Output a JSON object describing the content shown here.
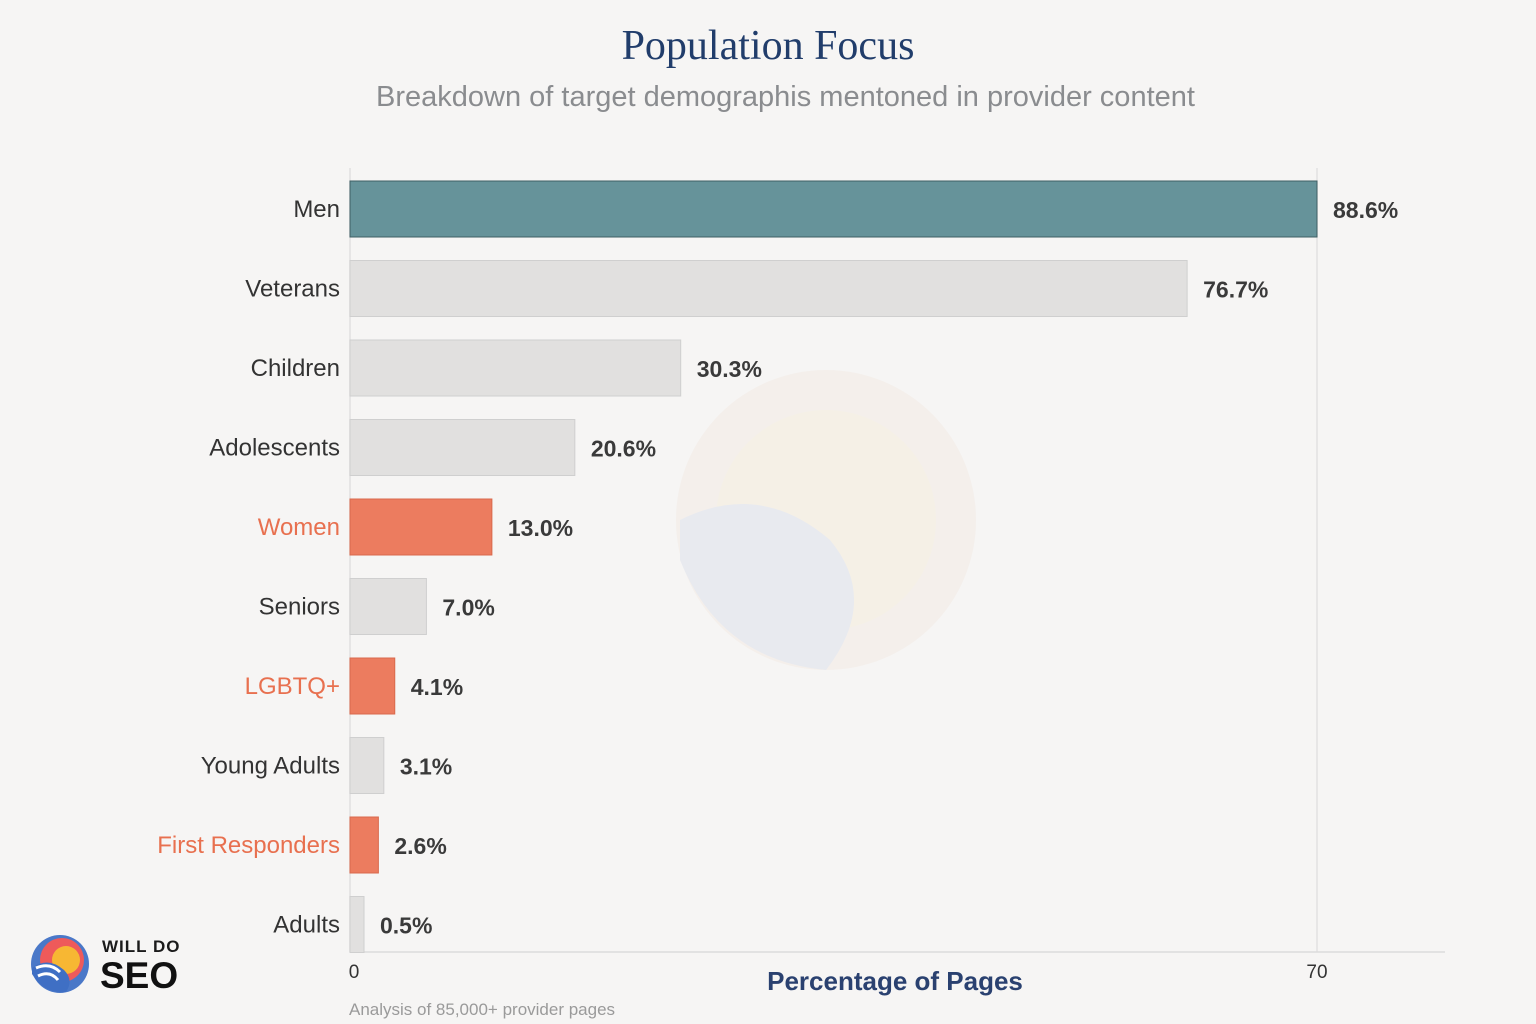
{
  "chart_data": {
    "type": "bar",
    "orientation": "horizontal",
    "title": "Population Focus",
    "subtitle": "Breakdown of target demographis mentoned in provider content",
    "xlabel": "Percentage of Pages",
    "x_ticks": [
      "0",
      "70"
    ],
    "categories": [
      "Men",
      "Veterans",
      "Children",
      "Adolescents",
      "Women",
      "Seniors",
      "LGBTQ+",
      "Young Adults",
      "First Responders",
      "Adults"
    ],
    "values": [
      88.6,
      76.7,
      30.3,
      20.6,
      13.0,
      7.0,
      4.1,
      3.1,
      2.6,
      0.5
    ],
    "value_labels": [
      "88.6%",
      "76.7%",
      "30.3%",
      "20.6%",
      "13.0%",
      "7.0%",
      "4.1%",
      "3.1%",
      "2.6%",
      "0.5%"
    ],
    "highlighted": [
      "Women",
      "LGBTQ+",
      "First Responders"
    ],
    "top_category": "Men",
    "colors": {
      "top": "#66939a",
      "highlight": "#ec7c5f",
      "default": "#e1e0df",
      "highlight_label": "#e8704f",
      "title": "#213d6b"
    },
    "grid": false,
    "legend": "none",
    "footnote": "Analysis of 85,000+ provider pages"
  },
  "brand": {
    "logo_line1": "WILL DO",
    "logo_line2": "SEO"
  }
}
